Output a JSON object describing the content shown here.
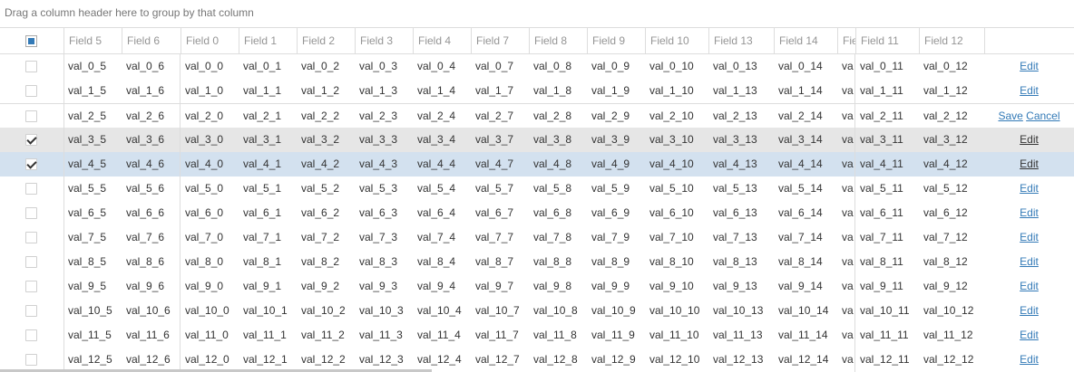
{
  "group_panel": {
    "text": "Drag a column header here to group by that column"
  },
  "columns": [
    "Field 5",
    "Field 6",
    "Field 0",
    "Field 1",
    "Field 2",
    "Field 3",
    "Field 4",
    "Field 7",
    "Field 8",
    "Field 9",
    "Field 10",
    "Field 13",
    "Field 14",
    "Fie",
    "Field 11",
    "Field 12"
  ],
  "commands": {
    "edit": "Edit",
    "save": "Save",
    "cancel": "Cancel"
  },
  "rows": [
    {
      "checked": false,
      "state": "normal",
      "cells": [
        "val_0_5",
        "val_0_6",
        "val_0_0",
        "val_0_1",
        "val_0_2",
        "val_0_3",
        "val_0_4",
        "val_0_7",
        "val_0_8",
        "val_0_9",
        "val_0_10",
        "val_0_13",
        "val_0_14",
        "va",
        "val_0_11",
        "val_0_12"
      ]
    },
    {
      "checked": false,
      "state": "normal",
      "cells": [
        "val_1_5",
        "val_1_6",
        "val_1_0",
        "val_1_1",
        "val_1_2",
        "val_1_3",
        "val_1_4",
        "val_1_7",
        "val_1_8",
        "val_1_9",
        "val_1_10",
        "val_1_13",
        "val_1_14",
        "va",
        "val_1_11",
        "val_1_12"
      ]
    },
    {
      "checked": false,
      "state": "editing",
      "cells": [
        "val_2_5",
        "val_2_6",
        "val_2_0",
        "val_2_1",
        "val_2_2",
        "val_2_3",
        "val_2_4",
        "val_2_7",
        "val_2_8",
        "val_2_9",
        "val_2_10",
        "val_2_13",
        "val_2_14",
        "va",
        "val_2_11",
        "val_2_12"
      ]
    },
    {
      "checked": true,
      "state": "selected",
      "cells": [
        "val_3_5",
        "val_3_6",
        "val_3_0",
        "val_3_1",
        "val_3_2",
        "val_3_3",
        "val_3_4",
        "val_3_7",
        "val_3_8",
        "val_3_9",
        "val_3_10",
        "val_3_13",
        "val_3_14",
        "va",
        "val_3_11",
        "val_3_12"
      ]
    },
    {
      "checked": true,
      "state": "focused",
      "cells": [
        "val_4_5",
        "val_4_6",
        "val_4_0",
        "val_4_1",
        "val_4_2",
        "val_4_3",
        "val_4_4",
        "val_4_7",
        "val_4_8",
        "val_4_9",
        "val_4_10",
        "val_4_13",
        "val_4_14",
        "va",
        "val_4_11",
        "val_4_12"
      ]
    },
    {
      "checked": false,
      "state": "normal",
      "cells": [
        "val_5_5",
        "val_5_6",
        "val_5_0",
        "val_5_1",
        "val_5_2",
        "val_5_3",
        "val_5_4",
        "val_5_7",
        "val_5_8",
        "val_5_9",
        "val_5_10",
        "val_5_13",
        "val_5_14",
        "va",
        "val_5_11",
        "val_5_12"
      ]
    },
    {
      "checked": false,
      "state": "normal",
      "cells": [
        "val_6_5",
        "val_6_6",
        "val_6_0",
        "val_6_1",
        "val_6_2",
        "val_6_3",
        "val_6_4",
        "val_6_7",
        "val_6_8",
        "val_6_9",
        "val_6_10",
        "val_6_13",
        "val_6_14",
        "va",
        "val_6_11",
        "val_6_12"
      ]
    },
    {
      "checked": false,
      "state": "normal",
      "cells": [
        "val_7_5",
        "val_7_6",
        "val_7_0",
        "val_7_1",
        "val_7_2",
        "val_7_3",
        "val_7_4",
        "val_7_7",
        "val_7_8",
        "val_7_9",
        "val_7_10",
        "val_7_13",
        "val_7_14",
        "va",
        "val_7_11",
        "val_7_12"
      ]
    },
    {
      "checked": false,
      "state": "normal",
      "cells": [
        "val_8_5",
        "val_8_6",
        "val_8_0",
        "val_8_1",
        "val_8_2",
        "val_8_3",
        "val_8_4",
        "val_8_7",
        "val_8_8",
        "val_8_9",
        "val_8_10",
        "val_8_13",
        "val_8_14",
        "va",
        "val_8_11",
        "val_8_12"
      ]
    },
    {
      "checked": false,
      "state": "normal",
      "cells": [
        "val_9_5",
        "val_9_6",
        "val_9_0",
        "val_9_1",
        "val_9_2",
        "val_9_3",
        "val_9_4",
        "val_9_7",
        "val_9_8",
        "val_9_9",
        "val_9_10",
        "val_9_13",
        "val_9_14",
        "va",
        "val_9_11",
        "val_9_12"
      ]
    },
    {
      "checked": false,
      "state": "normal",
      "cells": [
        "val_10_5",
        "val_10_6",
        "val_10_0",
        "val_10_1",
        "val_10_2",
        "val_10_3",
        "val_10_4",
        "val_10_7",
        "val_10_8",
        "val_10_9",
        "val_10_10",
        "val_10_13",
        "val_10_14",
        "va",
        "val_10_11",
        "val_10_12"
      ]
    },
    {
      "checked": false,
      "state": "normal",
      "cells": [
        "val_11_5",
        "val_11_6",
        "val_11_0",
        "val_11_1",
        "val_11_2",
        "val_11_3",
        "val_11_4",
        "val_11_7",
        "val_11_8",
        "val_11_9",
        "val_11_10",
        "val_11_13",
        "val_11_14",
        "va",
        "val_11_11",
        "val_11_12"
      ]
    },
    {
      "checked": false,
      "state": "normal",
      "cells": [
        "val_12_5",
        "val_12_6",
        "val_12_0",
        "val_12_1",
        "val_12_2",
        "val_12_3",
        "val_12_4",
        "val_12_7",
        "val_12_8",
        "val_12_9",
        "val_12_10",
        "val_12_13",
        "val_12_14",
        "va",
        "val_12_11",
        "val_12_12"
      ]
    }
  ],
  "colors": {
    "link": "#337ab7",
    "selected_row": "#e6e6e6",
    "focused_row": "#d3e1ef",
    "border": "#dddddd",
    "header_text": "#959595"
  }
}
